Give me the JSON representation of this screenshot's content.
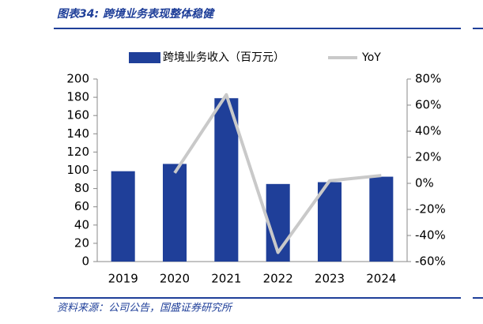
{
  "chart_data": {
    "type": "bar",
    "title": "图表34:  跨境业务表现整体稳健",
    "source": "资料来源：公司公告，国盛证券研究所",
    "categories": [
      "2019",
      "2020",
      "2021",
      "2022",
      "2023",
      "2024"
    ],
    "series": [
      {
        "name": "跨境业务收入（百万元）",
        "type": "bar",
        "color": "#1f3f99",
        "values": [
          99,
          107,
          179,
          85,
          87,
          93
        ]
      },
      {
        "name": "YoY",
        "type": "line",
        "axis": "y2",
        "color": "#c9c9c9",
        "values": [
          null,
          8,
          68,
          -53,
          2,
          6
        ]
      }
    ],
    "ylim": [
      0,
      200
    ],
    "yticks": [
      0,
      20,
      40,
      60,
      80,
      100,
      120,
      140,
      160,
      180,
      200
    ],
    "y2lim": [
      -60,
      80
    ],
    "y2ticks": [
      {
        "value": -60,
        "label": "-60%"
      },
      {
        "value": -40,
        "label": "-40%"
      },
      {
        "value": -20,
        "label": "-20%"
      },
      {
        "value": 0,
        "label": "0%"
      },
      {
        "value": 20,
        "label": "20%"
      },
      {
        "value": 40,
        "label": "40%"
      },
      {
        "value": 60,
        "label": "60%"
      },
      {
        "value": 80,
        "label": "80%"
      }
    ],
    "legend": "top"
  }
}
